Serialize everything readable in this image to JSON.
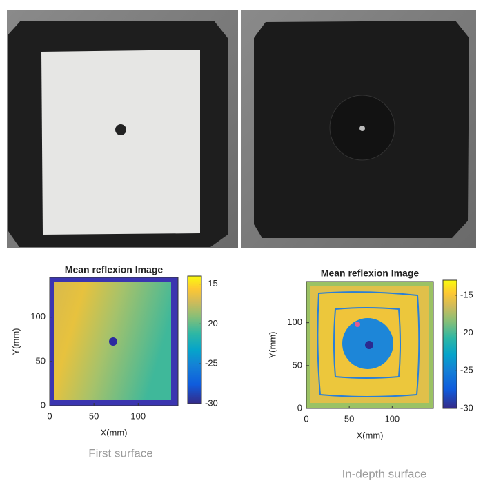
{
  "chart_data": [
    {
      "type": "heatmap",
      "title": "Mean reflexion Image",
      "x_label": "X(mm)",
      "y_label": "Y(mm)",
      "xlim": [
        0,
        145
      ],
      "ylim": [
        0,
        145
      ],
      "xticks": [
        0,
        50,
        100
      ],
      "yticks": [
        0,
        50,
        100
      ],
      "colormap": "parula",
      "clim": [
        -30,
        -14
      ],
      "cticks": [
        -15,
        -20,
        -25,
        -30
      ],
      "caption": "First surface"
    },
    {
      "type": "heatmap",
      "title": "Mean reflexion Image",
      "x_label": "X(mm)",
      "y_label": "Y(mm)",
      "xlim": [
        0,
        148
      ],
      "ylim": [
        0,
        148
      ],
      "xticks": [
        0,
        50,
        100
      ],
      "yticks": [
        0,
        50,
        100
      ],
      "colormap": "parula",
      "clim": [
        -30,
        -13
      ],
      "cticks": [
        -15,
        -20,
        -25,
        -30
      ],
      "caption": "In-depth surface"
    }
  ]
}
